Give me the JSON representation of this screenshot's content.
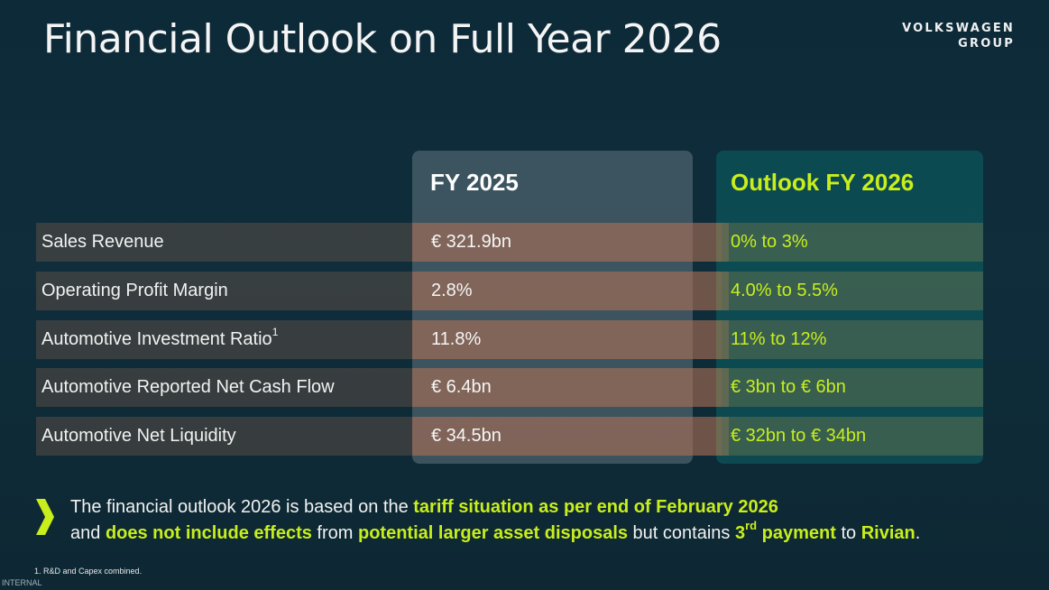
{
  "slide": {
    "title": "Financial Outlook on Full Year 2026",
    "logo_line1": "VOLKSWAGEN",
    "logo_line2": "GROUP"
  },
  "table": {
    "col_fy2025": "FY 2025",
    "col_outlook": "Outlook FY 2026",
    "rows": [
      {
        "label": "Sales Revenue",
        "fy2025": "€ 321.9bn",
        "outlook": "0% to 3%"
      },
      {
        "label": "Operating Profit Margin",
        "fy2025": "2.8%",
        "outlook": "4.0% to 5.5%"
      },
      {
        "label": "Automotive Investment Ratio",
        "label_sup": "1",
        "fy2025": "11.8%",
        "outlook": "11% to 12%"
      },
      {
        "label": "Automotive Reported Net Cash Flow",
        "fy2025": "€ 6.4bn",
        "outlook": "€ 3bn to € 6bn"
      },
      {
        "label": "Automotive Net Liquidity",
        "fy2025": "€ 34.5bn",
        "outlook": "€ 32bn to € 34bn"
      }
    ]
  },
  "note": {
    "p1": "The financial outlook 2026 is based on the ",
    "h1": "tariff situation as per end of February 2026",
    "p2": "and ",
    "h2": "does not include effects",
    "p3": " from ",
    "h3": "potential larger asset disposals",
    "p4": " but contains ",
    "h4": "3",
    "h4_sup": "rd",
    "h5": " payment",
    "p5": " to ",
    "h6": "Rivian",
    "p6": "."
  },
  "footnote": "1. R&D and Capex combined.",
  "classification": "INTERNAL",
  "colors": {
    "background": "#0f2b39",
    "accent": "#c8ee1c"
  }
}
